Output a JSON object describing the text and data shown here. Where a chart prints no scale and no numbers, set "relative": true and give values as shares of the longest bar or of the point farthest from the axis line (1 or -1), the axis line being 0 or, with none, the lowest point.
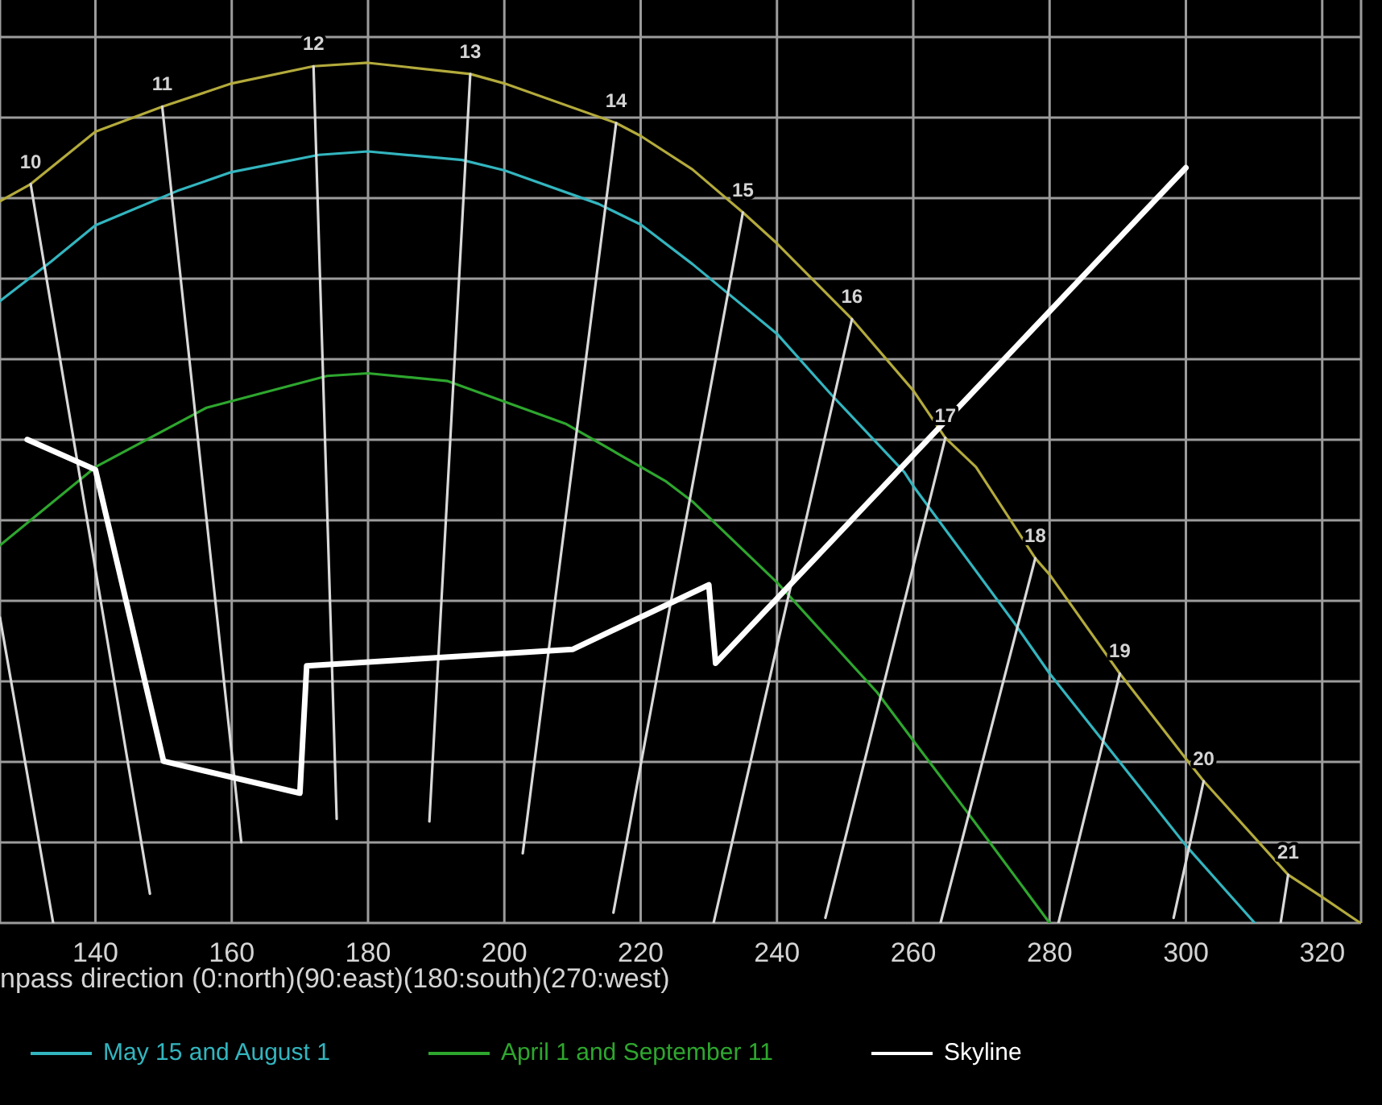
{
  "chart_data": {
    "type": "line",
    "xlabel": "npass direction (0:north)(90:east)(180:south)(270:west)",
    "relative": true,
    "xlim": [
      126,
      325.7
    ],
    "xticks": [
      140,
      160,
      180,
      200,
      220,
      240,
      260,
      280,
      300,
      320
    ],
    "grid": true,
    "legend": "bottom",
    "tick_labels": "x",
    "series": [
      {
        "color": "#b3aa3c",
        "x": [
          126,
          130.5,
          140,
          149.8,
          160,
          172,
          180,
          195,
          200,
          216.4,
          220,
          227.6,
          235,
          240,
          251,
          260,
          264.7,
          269.2,
          277.9,
          280,
          290.3,
          300,
          302.6,
          315,
          320,
          325.6
        ],
        "values": [
          0.839,
          0.859,
          0.92,
          0.949,
          0.976,
          0.996,
          1,
          0.987,
          0.976,
          0.93,
          0.915,
          0.876,
          0.826,
          0.79,
          0.702,
          0.619,
          0.564,
          0.53,
          0.424,
          0.405,
          0.29,
          0.191,
          0.165,
          0.056,
          0.03,
          0
        ]
      },
      {
        "name": "May 15 and August 1",
        "color": "#33b5bf",
        "x": [
          126,
          133.5,
          140,
          152,
          160,
          172.8,
          180,
          193.8,
          200,
          213.8,
          220,
          227.6,
          240,
          248,
          258.7,
          260,
          274.8,
          280,
          300,
          310.1
        ],
        "values": [
          0.723,
          0.769,
          0.811,
          0.851,
          0.873,
          0.893,
          0.897,
          0.887,
          0.875,
          0.836,
          0.812,
          0.766,
          0.685,
          0.614,
          0.524,
          0.508,
          0.349,
          0.29,
          0.09,
          0
        ]
      },
      {
        "name": "April 1 and September 11",
        "color": "#2ea62e",
        "x": [
          126,
          140,
          156.3,
          174,
          180,
          191.7,
          209.1,
          223.6,
          227.6,
          240,
          254.7,
          260,
          268.1,
          280
        ],
        "values": [
          0.439,
          0.53,
          0.599,
          0.636,
          0.639,
          0.63,
          0.58,
          0.514,
          0.49,
          0.396,
          0.268,
          0.212,
          0.127,
          0
        ]
      },
      {
        "color": "#d9d9d9",
        "x": [
          126,
          133.8
        ],
        "values": [
          0.355,
          0
        ]
      },
      {
        "color": "#d9d9d9",
        "x": [
          130.5,
          148
        ],
        "values": [
          0.859,
          0.034
        ]
      },
      {
        "color": "#d9d9d9",
        "x": [
          149.8,
          161.4
        ],
        "values": [
          0.949,
          0.094
        ]
      },
      {
        "color": "#d9d9d9",
        "x": [
          172,
          175.4
        ],
        "values": [
          0.996,
          0.121
        ]
      },
      {
        "color": "#d9d9d9",
        "x": [
          195,
          189
        ],
        "values": [
          0.987,
          0.118
        ]
      },
      {
        "color": "#d9d9d9",
        "x": [
          216.4,
          202.7
        ],
        "values": [
          0.93,
          0.081
        ]
      },
      {
        "color": "#d9d9d9",
        "x": [
          235,
          216
        ],
        "values": [
          0.826,
          0.012
        ]
      },
      {
        "color": "#d9d9d9",
        "x": [
          251,
          230.7
        ],
        "values": [
          0.702,
          0
        ]
      },
      {
        "color": "#d9d9d9",
        "x": [
          264.7,
          247.1
        ],
        "values": [
          0.564,
          0.006
        ]
      },
      {
        "color": "#d9d9d9",
        "x": [
          277.9,
          264
        ],
        "values": [
          0.424,
          0
        ]
      },
      {
        "color": "#d9d9d9",
        "x": [
          290.3,
          281.3
        ],
        "values": [
          0.29,
          0
        ]
      },
      {
        "color": "#d9d9d9",
        "x": [
          302.6,
          298.2
        ],
        "values": [
          0.165,
          0.006
        ]
      },
      {
        "color": "#d9d9d9",
        "x": [
          315,
          313.9
        ],
        "values": [
          0.056,
          0
        ]
      },
      {
        "name": "Skyline",
        "color": "#ffffff",
        "x": [
          130,
          140,
          150,
          170,
          171,
          210,
          230,
          231,
          300
        ],
        "values": [
          0.562,
          0.527,
          0.188,
          0.151,
          0.299,
          0.318,
          0.393,
          0.302,
          0.878
        ]
      }
    ],
    "annotations": [
      {
        "text": "10",
        "x": 130.5,
        "y": 0.859
      },
      {
        "text": "11",
        "x": 149.8,
        "y": 0.949
      },
      {
        "text": "12",
        "x": 172,
        "y": 0.996
      },
      {
        "text": "13",
        "x": 195,
        "y": 0.987
      },
      {
        "text": "14",
        "x": 216.4,
        "y": 0.93
      },
      {
        "text": "15",
        "x": 235,
        "y": 0.826
      },
      {
        "text": "16",
        "x": 251,
        "y": 0.702
      },
      {
        "text": "17",
        "x": 264.7,
        "y": 0.564
      },
      {
        "text": "18",
        "x": 277.9,
        "y": 0.424
      },
      {
        "text": "19",
        "x": 290.3,
        "y": 0.29
      },
      {
        "text": "20",
        "x": 302.6,
        "y": 0.165
      },
      {
        "text": "21",
        "x": 315,
        "y": 0.056
      }
    ]
  }
}
